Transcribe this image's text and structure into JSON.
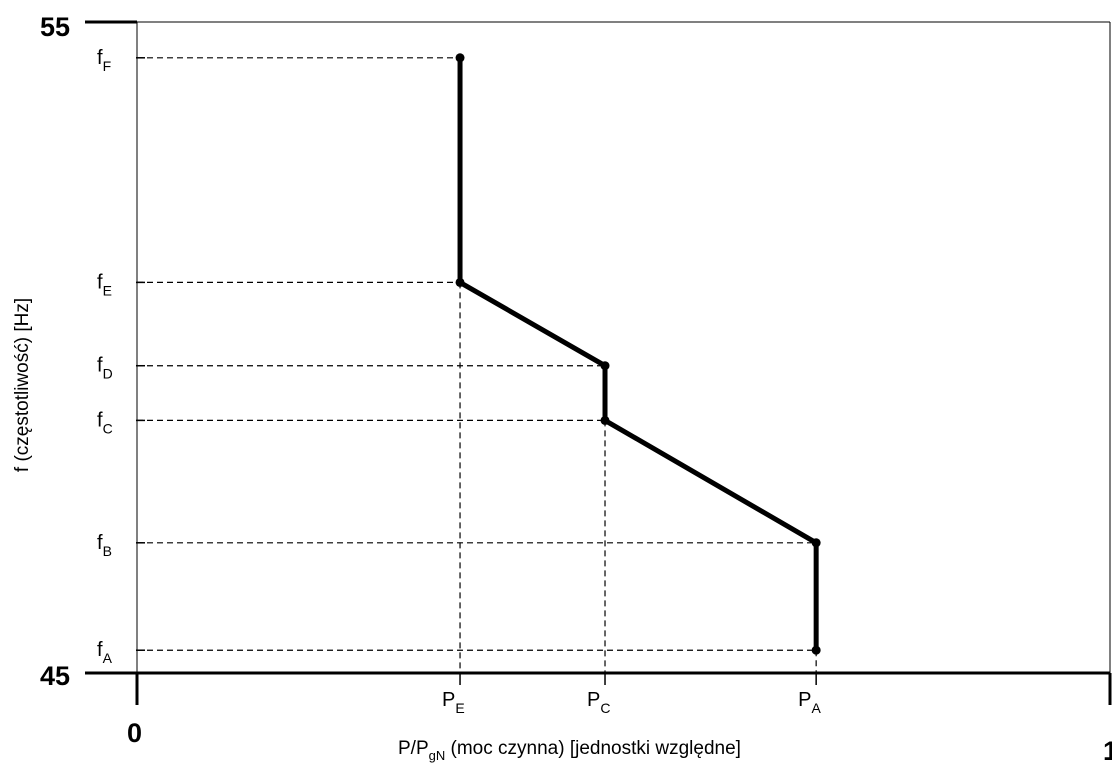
{
  "chart_data": {
    "type": "line",
    "title": "",
    "xlabel": {
      "main": "P/P",
      "sub": "gN",
      "rest": " (moc czynna) [jednostki względne]"
    },
    "ylabel": "f (częstotliwość) [Hz]",
    "xlim": [
      0,
      1
    ],
    "ylim": [
      45,
      55
    ],
    "x_axis_numbers": [
      "0",
      "1"
    ],
    "y_axis_numbers": [
      "55",
      "45"
    ],
    "grid": false,
    "y_ticks": [
      {
        "base": "f",
        "sub": "F",
        "value": 54.45
      },
      {
        "base": "f",
        "sub": "E",
        "value": 51.0
      },
      {
        "base": "f",
        "sub": "D",
        "value": 49.72
      },
      {
        "base": "f",
        "sub": "C",
        "value": 48.88
      },
      {
        "base": "f",
        "sub": "B",
        "value": 47.0
      },
      {
        "base": "f",
        "sub": "A",
        "value": 45.35
      }
    ],
    "x_ticks": [
      {
        "base": "P",
        "sub": "E",
        "value": 0.332
      },
      {
        "base": "P",
        "sub": "C",
        "value": 0.481
      },
      {
        "base": "P",
        "sub": "A",
        "value": 0.698
      }
    ],
    "series": [
      {
        "points": [
          {
            "x": 0.332,
            "y": 54.45
          },
          {
            "x": 0.332,
            "y": 51.0
          },
          {
            "x": 0.481,
            "y": 49.72
          },
          {
            "x": 0.481,
            "y": 48.88
          },
          {
            "x": 0.698,
            "y": 47.0
          },
          {
            "x": 0.698,
            "y": 45.35
          }
        ]
      }
    ]
  }
}
